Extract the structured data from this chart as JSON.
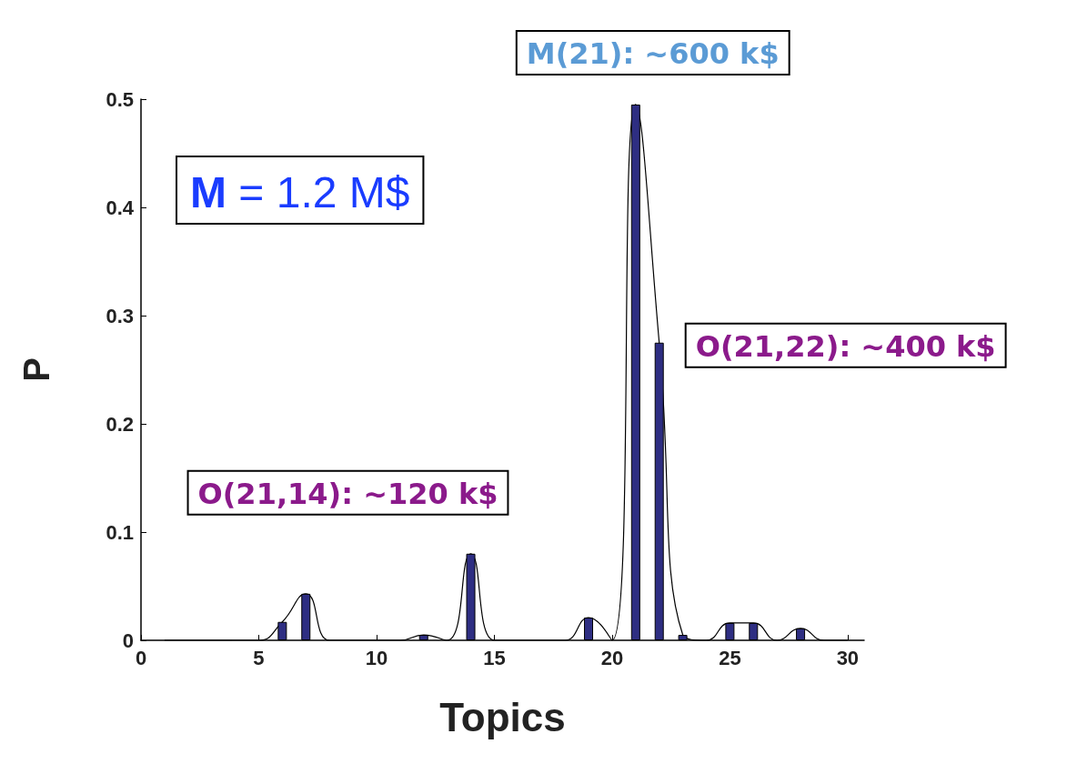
{
  "chart_data": {
    "type": "bar",
    "xlabel": "Topics",
    "ylabel": "P",
    "xlim": [
      0,
      30.7
    ],
    "xticks": [
      0,
      5,
      10,
      15,
      20,
      25,
      30
    ],
    "ylim": [
      0,
      0.5
    ],
    "yticks": [
      0,
      0.1,
      0.2,
      0.3,
      0.4,
      0.5
    ],
    "grid": false,
    "series": [
      {
        "color": "#2e2e82",
        "x": [
          6,
          7,
          12,
          14,
          19,
          21,
          22,
          23,
          25,
          26,
          28
        ],
        "values": [
          0.017,
          0.043,
          0.005,
          0.08,
          0.021,
          0.495,
          0.275,
          0.005,
          0.016,
          0.016,
          0.011
        ]
      },
      {
        "type": "line",
        "color": "#000000",
        "x": [
          1,
          2,
          3,
          4,
          5,
          6,
          7,
          8,
          9,
          10,
          11,
          12,
          13,
          14,
          15,
          16,
          17,
          18,
          19,
          20,
          21,
          22,
          23,
          24,
          25,
          26,
          27,
          28,
          29,
          30
        ],
        "values": [
          0,
          0,
          0,
          0,
          0,
          0.017,
          0.043,
          0,
          0,
          0,
          0,
          0.005,
          0,
          0.08,
          0,
          0,
          0,
          0,
          0.021,
          0,
          0.495,
          0.275,
          0.005,
          0,
          0.016,
          0.016,
          0,
          0.011,
          0,
          0
        ]
      }
    ],
    "annotations": [
      "M = 1.2 M$",
      {
        "text": "M(21): ~600 k$",
        "x": 21,
        "y": 0.495
      },
      {
        "text": "O(21,22): ~400 k$",
        "x": 22,
        "y": 0.275
      },
      {
        "text": "O(21,14): ~120 k$",
        "x": 14,
        "y": 0.08
      }
    ]
  }
}
